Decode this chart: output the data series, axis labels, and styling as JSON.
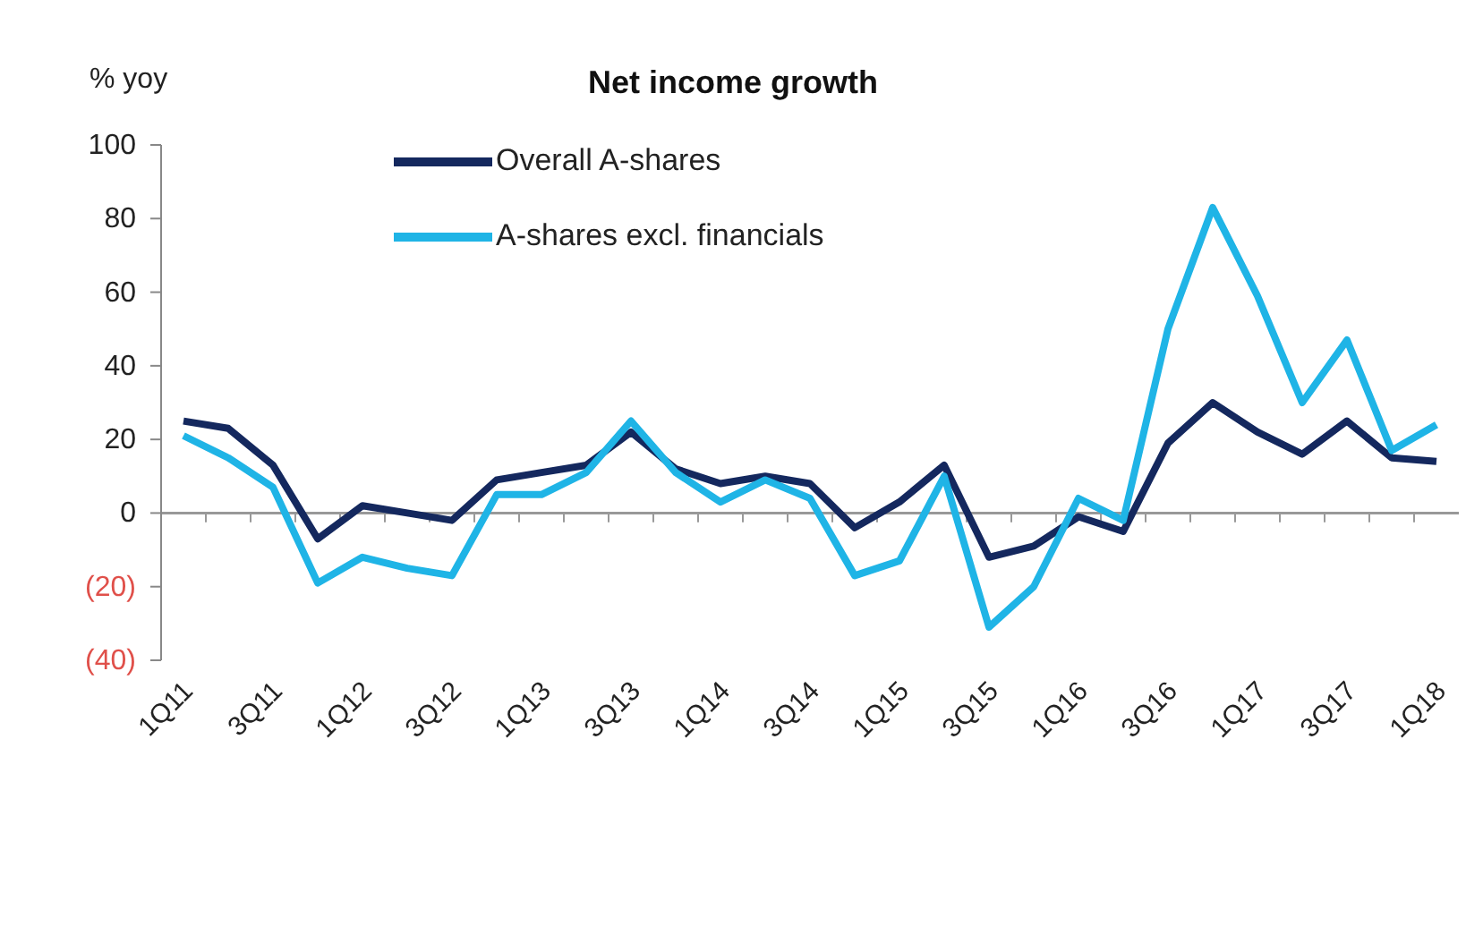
{
  "chart_data": {
    "type": "line",
    "title": "Net income growth",
    "ylabel": "% yoy",
    "categories": [
      "1Q11",
      null,
      "3Q11",
      null,
      "1Q12",
      null,
      "3Q12",
      null,
      "1Q13",
      null,
      "3Q13",
      null,
      "1Q14",
      null,
      "3Q14",
      null,
      "1Q15",
      null,
      "3Q15",
      null,
      "1Q16",
      null,
      "3Q16",
      null,
      "1Q17",
      null,
      "3Q17",
      null,
      "1Q18"
    ],
    "series": [
      {
        "name": "Overall A-shares",
        "color": "#14285e",
        "values": [
          25,
          23,
          13,
          -7,
          2,
          0,
          -2,
          9,
          11,
          13,
          22,
          12,
          8,
          10,
          8,
          -4,
          3,
          13,
          -12,
          -9,
          -1,
          -5,
          19,
          30,
          22,
          16,
          25,
          15,
          14
        ]
      },
      {
        "name": "A-shares excl. financials",
        "color": "#1fb4e6",
        "values": [
          21,
          15,
          7,
          -19,
          -12,
          -15,
          -17,
          5,
          5,
          11,
          25,
          11,
          3,
          9,
          4,
          -17,
          -13,
          10,
          -31,
          -20,
          4,
          -2,
          50,
          83,
          59,
          30,
          47,
          17,
          24
        ]
      }
    ],
    "ylim": [
      -40,
      100
    ],
    "yticks": [
      {
        "value": -40,
        "label": "(40)"
      },
      {
        "value": -20,
        "label": "(20)"
      },
      0,
      20,
      40,
      60,
      80,
      100
    ],
    "legend": "top left",
    "marker": "none",
    "line_style": "solid"
  }
}
